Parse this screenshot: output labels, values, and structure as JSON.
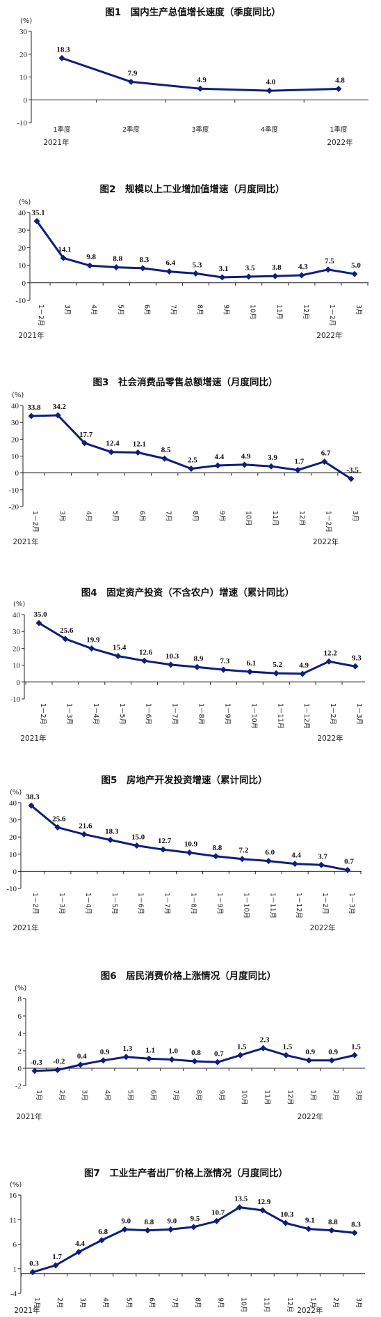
{
  "colors": {
    "series": "#0c1f7a",
    "axis": "#222222"
  },
  "chart_data": [
    {
      "type": "line",
      "title": "图1　国内生产总值增长速度（季度同比）",
      "unit": "(%)",
      "ylim": [
        -10,
        30
      ],
      "yticks": [
        -10,
        0,
        10,
        20,
        30
      ],
      "categories": [
        "1季度",
        "2季度",
        "3季度",
        "4季度",
        "1季度"
      ],
      "values": [
        18.3,
        7.9,
        4.9,
        4.0,
        4.8
      ],
      "labels": [
        "18.3",
        "7.9",
        "4.9",
        "4.0",
        "4.8"
      ],
      "x_rotated": false,
      "years": [
        {
          "text": "2021年",
          "index": 0
        },
        {
          "text": "2022年",
          "index": 4
        }
      ],
      "legend": "none",
      "grid": false
    },
    {
      "type": "line",
      "title": "图2　规模以上工业增加值增速（月度同比）",
      "unit": "(%)",
      "ylim": [
        -10,
        40
      ],
      "yticks": [
        -10,
        0,
        10,
        20,
        30,
        40
      ],
      "categories": [
        "1－2月",
        "3月",
        "4月",
        "5月",
        "6月",
        "7月",
        "8月",
        "9月",
        "10月",
        "11月",
        "12月",
        "1－2月",
        "3月"
      ],
      "values": [
        35.1,
        14.1,
        9.8,
        8.8,
        8.3,
        6.4,
        5.3,
        3.1,
        3.5,
        3.8,
        4.3,
        7.5,
        5.0
      ],
      "labels": [
        "35.1",
        "14.1",
        "9.8",
        "8.8",
        "8.3",
        "6.4",
        "5.3",
        "3.1",
        "3.5",
        "3.8",
        "4.3",
        "7.5",
        "5.0"
      ],
      "x_rotated": true,
      "years": [
        {
          "text": "2021年",
          "index": 0
        },
        {
          "text": "2022年",
          "index": 11
        }
      ],
      "legend": "none",
      "grid": false
    },
    {
      "type": "line",
      "title": "图3　社会消费品零售总额增速（月度同比）",
      "unit": "(%)",
      "ylim": [
        -20,
        40
      ],
      "yticks": [
        -20,
        -10,
        0,
        10,
        20,
        30,
        40
      ],
      "categories": [
        "1－2月",
        "3月",
        "4月",
        "5月",
        "6月",
        "7月",
        "8月",
        "9月",
        "10月",
        "11月",
        "12月",
        "1－2月",
        "3月"
      ],
      "values": [
        33.8,
        34.2,
        17.7,
        12.4,
        12.1,
        8.5,
        2.5,
        4.4,
        4.9,
        3.9,
        1.7,
        6.7,
        -3.5
      ],
      "labels": [
        "33.8",
        "34.2",
        "17.7",
        "12.4",
        "12.1",
        "8.5",
        "2.5",
        "4.4",
        "4.9",
        "3.9",
        "1.7",
        "6.7",
        "-3.5"
      ],
      "x_rotated": true,
      "years": [
        {
          "text": "2021年",
          "index": 0
        },
        {
          "text": "2022年",
          "index": 11
        }
      ],
      "legend": "none",
      "grid": false
    },
    {
      "type": "line",
      "title": "图4　固定资产投资（不含农户）增速（累计同比）",
      "unit": "(%)",
      "ylim": [
        -10,
        40
      ],
      "yticks": [
        -10,
        0,
        10,
        20,
        30,
        40
      ],
      "categories": [
        "1－2月",
        "1－3月",
        "1－4月",
        "1－5月",
        "1－6月",
        "1－7月",
        "1－8月",
        "1－9月",
        "1－10月",
        "1－11月",
        "1－12月",
        "1－2月",
        "1－3月"
      ],
      "values": [
        35.0,
        25.6,
        19.9,
        15.4,
        12.6,
        10.3,
        8.9,
        7.3,
        6.1,
        5.2,
        4.9,
        12.2,
        9.3
      ],
      "labels": [
        "35.0",
        "25.6",
        "19.9",
        "15.4",
        "12.6",
        "10.3",
        "8.9",
        "7.3",
        "6.1",
        "5.2",
        "4.9",
        "12.2",
        "9.3"
      ],
      "x_rotated": true,
      "years": [
        {
          "text": "2021年",
          "index": 0
        },
        {
          "text": "2022年",
          "index": 11
        }
      ],
      "legend": "none",
      "grid": false
    },
    {
      "type": "line",
      "title": "图5　房地产开发投资增速（累计同比）",
      "unit": "(%)",
      "ylim": [
        -10,
        40
      ],
      "yticks": [
        -10,
        0,
        10,
        20,
        30,
        40
      ],
      "categories": [
        "1－2月",
        "1－3月",
        "1－4月",
        "1－5月",
        "1－6月",
        "1－7月",
        "1－8月",
        "1－9月",
        "1－10月",
        "1－11月",
        "1－12月",
        "1－2月",
        "1－3月"
      ],
      "values": [
        38.3,
        25.6,
        21.6,
        18.3,
        15.0,
        12.7,
        10.9,
        8.8,
        7.2,
        6.0,
        4.4,
        3.7,
        0.7
      ],
      "labels": [
        "38.3",
        "25.6",
        "21.6",
        "18.3",
        "15.0",
        "12.7",
        "10.9",
        "8.8",
        "7.2",
        "6.0",
        "4.4",
        "3.7",
        "0.7"
      ],
      "x_rotated": true,
      "years": [
        {
          "text": "2021年",
          "index": 0
        },
        {
          "text": "2022年",
          "index": 11
        }
      ],
      "legend": "none",
      "grid": false
    },
    {
      "type": "line",
      "title": "图6　居民消费价格上涨情况（月度同比）",
      "unit": "(%)",
      "ylim": [
        -2,
        8
      ],
      "yticks": [
        -2,
        0,
        2,
        4,
        6,
        8
      ],
      "categories": [
        "1月",
        "2月",
        "3月",
        "4月",
        "5月",
        "6月",
        "7月",
        "8月",
        "9月",
        "10月",
        "11月",
        "12月",
        "1月",
        "2月",
        "3月"
      ],
      "values": [
        -0.3,
        -0.2,
        0.4,
        0.9,
        1.3,
        1.1,
        1.0,
        0.8,
        0.7,
        1.5,
        2.3,
        1.5,
        0.9,
        0.9,
        1.5
      ],
      "labels": [
        "-0.3",
        "-0.2",
        "0.4",
        "0.9",
        "1.3",
        "1.1",
        "1.0",
        "0.8",
        "0.7",
        "1.5",
        "2.3",
        "1.5",
        "0.9",
        "0.9",
        "1.5"
      ],
      "x_rotated": true,
      "years": [
        {
          "text": "2021年",
          "index": 0
        },
        {
          "text": "2022年",
          "index": 12
        }
      ],
      "legend": "none",
      "grid": false
    },
    {
      "type": "line",
      "title": "图7　工业生产者出厂价格上涨情况（月度同比）",
      "unit": "(%)",
      "ylim": [
        -4,
        16
      ],
      "yticks": [
        -4,
        1,
        6,
        11,
        16
      ],
      "categories": [
        "1月",
        "2月",
        "3月",
        "4月",
        "5月",
        "6月",
        "7月",
        "8月",
        "9月",
        "10月",
        "11月",
        "12月",
        "1月",
        "2月",
        "3月"
      ],
      "values": [
        0.3,
        1.7,
        4.4,
        6.8,
        9.0,
        8.8,
        9.0,
        9.5,
        10.7,
        13.5,
        12.9,
        10.3,
        9.1,
        8.8,
        8.3
      ],
      "labels": [
        "0.3",
        "1.7",
        "4.4",
        "6.8",
        "9.0",
        "8.8",
        "9.0",
        "9.5",
        "10.7",
        "13.5",
        "12.9",
        "10.3",
        "9.1",
        "8.8",
        "8.3"
      ],
      "x_rotated": true,
      "years": [
        {
          "text": "2021年",
          "index": 0
        },
        {
          "text": "2022年",
          "index": 12
        }
      ],
      "legend": "none",
      "grid": false
    }
  ]
}
